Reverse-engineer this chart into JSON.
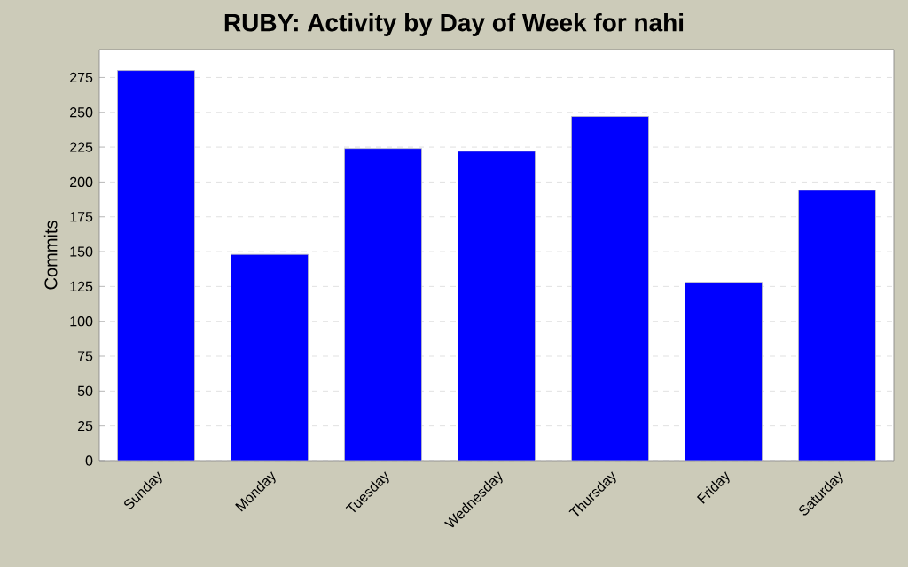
{
  "chart_data": {
    "type": "bar",
    "title": "RUBY: Activity by Day of Week for nahi",
    "ylabel": "Commits",
    "categories": [
      "Sunday",
      "Monday",
      "Tuesday",
      "Wednesday",
      "Thursday",
      "Friday",
      "Saturday"
    ],
    "values": [
      280,
      148,
      224,
      222,
      247,
      128,
      194
    ],
    "color": "#0000ff",
    "ylim": [
      0,
      295
    ],
    "yticks": [
      0,
      25,
      50,
      75,
      100,
      125,
      150,
      175,
      200,
      225,
      250,
      275
    ],
    "grid": "y"
  }
}
